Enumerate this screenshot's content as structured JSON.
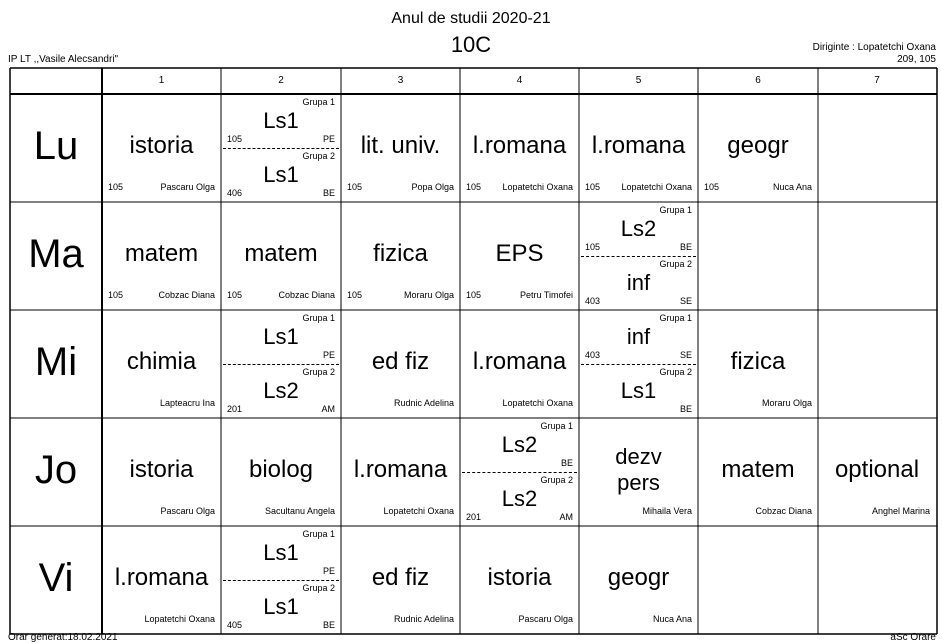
{
  "header": {
    "year": "Anul de studii 2020-21",
    "class": "10C",
    "school": "IP LT ,,Vasile Alecsandri\"",
    "diriginte": "Diriginte : Lopatetchi Oxana",
    "diriginte_room": "209, 105"
  },
  "footer": {
    "generated": "Orar generat:18.02.2021",
    "brand": "aSc Orare"
  },
  "periods": [
    "1",
    "2",
    "3",
    "4",
    "5",
    "6",
    "7"
  ],
  "days": [
    {
      "label": "Lu",
      "cells": [
        {
          "type": "single",
          "subject": "istoria",
          "room": "105",
          "teacher": "Pascaru Olga"
        },
        {
          "type": "split",
          "top": {
            "group": "Grupa 1",
            "subject": "Ls1",
            "room": "105",
            "code": "PE"
          },
          "bottom": {
            "group": "Grupa 2",
            "subject": "Ls1",
            "room": "406",
            "code": "BE"
          }
        },
        {
          "type": "single",
          "subject": "lit. univ.",
          "room": "105",
          "teacher": "Popa Olga"
        },
        {
          "type": "single",
          "subject": "l.romana",
          "room": "105",
          "teacher": "Lopatetchi Oxana"
        },
        {
          "type": "single",
          "subject": "l.romana",
          "room": "105",
          "teacher": "Lopatetchi Oxana"
        },
        {
          "type": "single",
          "subject": "geogr",
          "room": "105",
          "teacher": "Nuca Ana"
        },
        {
          "type": "empty"
        }
      ]
    },
    {
      "label": "Ma",
      "cells": [
        {
          "type": "single",
          "subject": "matem",
          "room": "105",
          "teacher": "Cobzac Diana"
        },
        {
          "type": "single",
          "subject": "matem",
          "room": "105",
          "teacher": "Cobzac Diana"
        },
        {
          "type": "single",
          "subject": "fizica",
          "room": "105",
          "teacher": "Moraru Olga"
        },
        {
          "type": "single",
          "subject": "EPS",
          "room": "105",
          "teacher": "Petru Timofei"
        },
        {
          "type": "split",
          "top": {
            "group": "Grupa 1",
            "subject": "Ls2",
            "room": "105",
            "code": "BE"
          },
          "bottom": {
            "group": "Grupa 2",
            "subject": "inf",
            "room": "403",
            "code": "SE"
          }
        },
        {
          "type": "empty"
        },
        {
          "type": "empty"
        }
      ]
    },
    {
      "label": "Mi",
      "cells": [
        {
          "type": "single",
          "subject": "chimia",
          "room": "",
          "teacher": "Lapteacru Ina"
        },
        {
          "type": "split",
          "top": {
            "group": "Grupa 1",
            "subject": "Ls1",
            "room": "",
            "code": "PE"
          },
          "bottom": {
            "group": "Grupa 2",
            "subject": "Ls2",
            "room": "201",
            "code": "AM"
          }
        },
        {
          "type": "single",
          "subject": "ed fiz",
          "room": "",
          "teacher": "Rudnic Adelina"
        },
        {
          "type": "single",
          "subject": "l.romana",
          "room": "",
          "teacher": "Lopatetchi Oxana"
        },
        {
          "type": "split",
          "top": {
            "group": "Grupa 1",
            "subject": "inf",
            "room": "403",
            "code": "SE"
          },
          "bottom": {
            "group": "Grupa 2",
            "subject": "Ls1",
            "room": "",
            "code": "BE"
          }
        },
        {
          "type": "single",
          "subject": "fizica",
          "room": "",
          "teacher": "Moraru Olga"
        },
        {
          "type": "empty"
        }
      ]
    },
    {
      "label": "Jo",
      "cells": [
        {
          "type": "single",
          "subject": "istoria",
          "room": "",
          "teacher": "Pascaru Olga"
        },
        {
          "type": "single",
          "subject": "biolog",
          "room": "",
          "teacher": "Sacultanu Angela"
        },
        {
          "type": "single",
          "subject": "l.romana",
          "room": "",
          "teacher": "Lopatetchi Oxana"
        },
        {
          "type": "split",
          "top": {
            "group": "Grupa 1",
            "subject": "Ls2",
            "room": "",
            "code": "BE"
          },
          "bottom": {
            "group": "Grupa 2",
            "subject": "Ls2",
            "room": "201",
            "code": "AM"
          }
        },
        {
          "type": "double",
          "line1": "dezv",
          "line2": "pers",
          "room": "",
          "teacher": "Mihaila Vera"
        },
        {
          "type": "single",
          "subject": "matem",
          "room": "",
          "teacher": "Cobzac Diana"
        },
        {
          "type": "single",
          "subject": "optional",
          "room": "",
          "teacher": "Anghel Marina"
        }
      ]
    },
    {
      "label": "Vi",
      "cells": [
        {
          "type": "single",
          "subject": "l.romana",
          "room": "",
          "teacher": "Lopatetchi Oxana"
        },
        {
          "type": "split",
          "top": {
            "group": "Grupa 1",
            "subject": "Ls1",
            "room": "",
            "code": "PE"
          },
          "bottom": {
            "group": "Grupa 2",
            "subject": "Ls1",
            "room": "405",
            "code": "BE"
          }
        },
        {
          "type": "single",
          "subject": "ed fiz",
          "room": "",
          "teacher": "Rudnic Adelina"
        },
        {
          "type": "single",
          "subject": "istoria",
          "room": "",
          "teacher": "Pascaru Olga"
        },
        {
          "type": "single",
          "subject": "geogr",
          "room": "",
          "teacher": "Nuca Ana"
        },
        {
          "type": "empty"
        },
        {
          "type": "empty"
        }
      ]
    }
  ]
}
